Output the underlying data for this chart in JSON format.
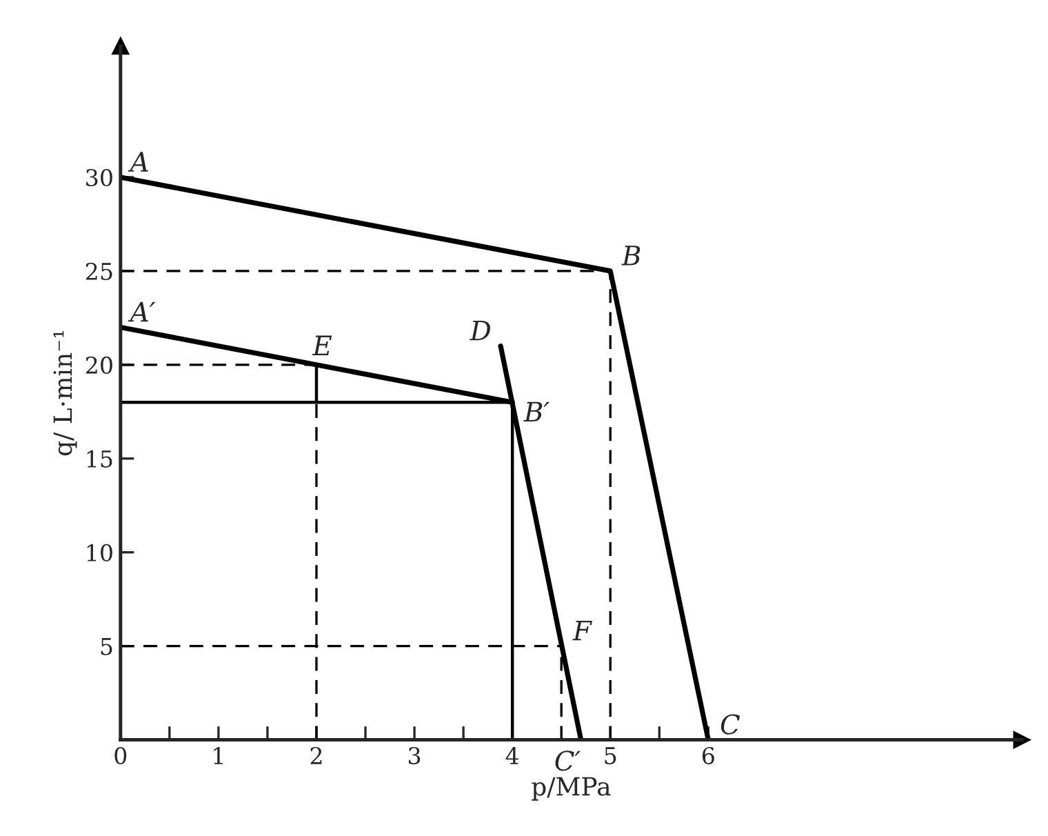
{
  "chart_data": {
    "type": "line",
    "xlabel": "p/MPa",
    "ylabel": "q/ L·min⁻¹",
    "xlim": [
      0,
      9.2
    ],
    "ylim": [
      0,
      37
    ],
    "xticks": [
      0,
      {
        "value": 0.5,
        "label": null
      },
      1,
      {
        "value": 1.5,
        "label": null
      },
      2,
      {
        "value": 2.5,
        "label": null
      },
      3,
      {
        "value": 3.5,
        "label": null
      },
      4,
      5,
      {
        "value": 5.5,
        "label": null
      },
      6
    ],
    "yticks": [
      5,
      10,
      15,
      20,
      25,
      30
    ],
    "grid": false,
    "legend": false,
    "marker": "none",
    "series": [
      {
        "color": "#000000",
        "line_style": "solid",
        "x": [
          0,
          5,
          6
        ],
        "values": [
          30,
          25,
          0
        ]
      },
      {
        "color": "#000000",
        "line_style": "solid",
        "x": [
          0,
          4
        ],
        "values": [
          22,
          18
        ]
      },
      {
        "color": "#000000",
        "line_style": "solid",
        "x": [
          3.88,
          4.7
        ],
        "values": [
          21,
          0
        ]
      },
      {
        "color": "#000000",
        "line_style": "solid",
        "x": [
          0,
          4
        ],
        "values": [
          18,
          18
        ]
      },
      {
        "color": "#000000",
        "line_style": "solid",
        "x": [
          4,
          4
        ],
        "values": [
          0,
          18
        ]
      },
      {
        "color": "#000000",
        "line_style": "solid",
        "x": [
          2,
          2
        ],
        "values": [
          18,
          20
        ]
      },
      {
        "color": "#000000",
        "line_style": "dashed",
        "x": [
          0,
          5
        ],
        "values": [
          25,
          25
        ]
      },
      {
        "color": "#000000",
        "line_style": "dashed",
        "x": [
          5,
          5
        ],
        "values": [
          0,
          25
        ]
      },
      {
        "color": "#000000",
        "line_style": "dashed",
        "x": [
          0,
          2
        ],
        "values": [
          20,
          20
        ]
      },
      {
        "color": "#000000",
        "line_style": "dashed",
        "x": [
          2,
          2
        ],
        "values": [
          0,
          18
        ]
      },
      {
        "color": "#000000",
        "line_style": "dashed",
        "x": [
          0,
          4.5
        ],
        "values": [
          5,
          5
        ]
      },
      {
        "color": "#000000",
        "line_style": "dashed",
        "x": [
          4.5,
          4.5
        ],
        "values": [
          0,
          5
        ]
      }
    ],
    "annotations": [
      {
        "text": "A",
        "x": 0,
        "y": 30
      },
      {
        "text": "B",
        "x": 5,
        "y": 25
      },
      {
        "text": "C",
        "x": 6,
        "y": 0
      },
      {
        "text": "A′",
        "x": 0,
        "y": 22
      },
      {
        "text": "E",
        "x": 2,
        "y": 20
      },
      {
        "text": "D",
        "x": 3.88,
        "y": 21
      },
      {
        "text": "B′",
        "x": 4,
        "y": 18
      },
      {
        "text": "F",
        "x": 4.5,
        "y": 5
      },
      {
        "text": "C′",
        "x": 4.7,
        "y": 0
      }
    ]
  }
}
